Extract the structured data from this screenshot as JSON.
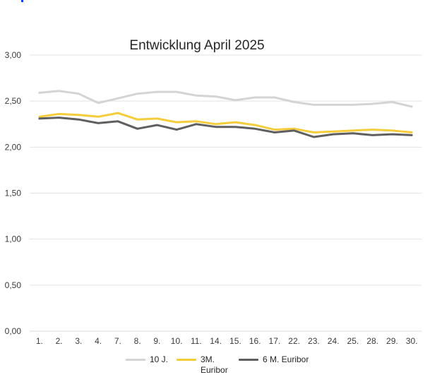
{
  "chart_data": {
    "type": "line",
    "title": "Entwicklung April 2025",
    "xlabel": "",
    "ylabel": "",
    "categories": [
      "1.",
      "2.",
      "3.",
      "4.",
      "7.",
      "8.",
      "9.",
      "10.",
      "11.",
      "14.",
      "15.",
      "16.",
      "17.",
      "22.",
      "23.",
      "24.",
      "25.",
      "28.",
      "29.",
      "30."
    ],
    "ylim": [
      0,
      3
    ],
    "yticks": [
      "0,00",
      "0,50",
      "1,00",
      "1,50",
      "2,00",
      "2,50",
      "3,00"
    ],
    "grid": true,
    "legend_position": "bottom",
    "series": [
      {
        "name": "10 J.",
        "color": "#d4d4d4",
        "values": [
          2.59,
          2.61,
          2.58,
          2.48,
          2.53,
          2.58,
          2.6,
          2.6,
          2.56,
          2.55,
          2.51,
          2.54,
          2.54,
          2.49,
          2.46,
          2.46,
          2.46,
          2.47,
          2.49,
          2.44
        ]
      },
      {
        "name": "3M. Euribor",
        "name_lines": [
          "3M.",
          "Euribor"
        ],
        "color": "#f5cd3c",
        "values": [
          2.33,
          2.36,
          2.35,
          2.33,
          2.37,
          2.3,
          2.31,
          2.27,
          2.28,
          2.25,
          2.27,
          2.24,
          2.19,
          2.2,
          2.16,
          2.17,
          2.18,
          2.19,
          2.18,
          2.16
        ]
      },
      {
        "name": "6 M. Euribor",
        "color": "#5f5f5f",
        "values": [
          2.31,
          2.32,
          2.3,
          2.26,
          2.28,
          2.2,
          2.24,
          2.19,
          2.25,
          2.22,
          2.22,
          2.2,
          2.16,
          2.18,
          2.11,
          2.14,
          2.15,
          2.13,
          2.14,
          2.13
        ]
      }
    ]
  },
  "legend": {
    "item_1": "10 J.",
    "item_2_line1": "3M.",
    "item_2_line2": "Euribor",
    "item_3": "6 M. Euribor"
  }
}
